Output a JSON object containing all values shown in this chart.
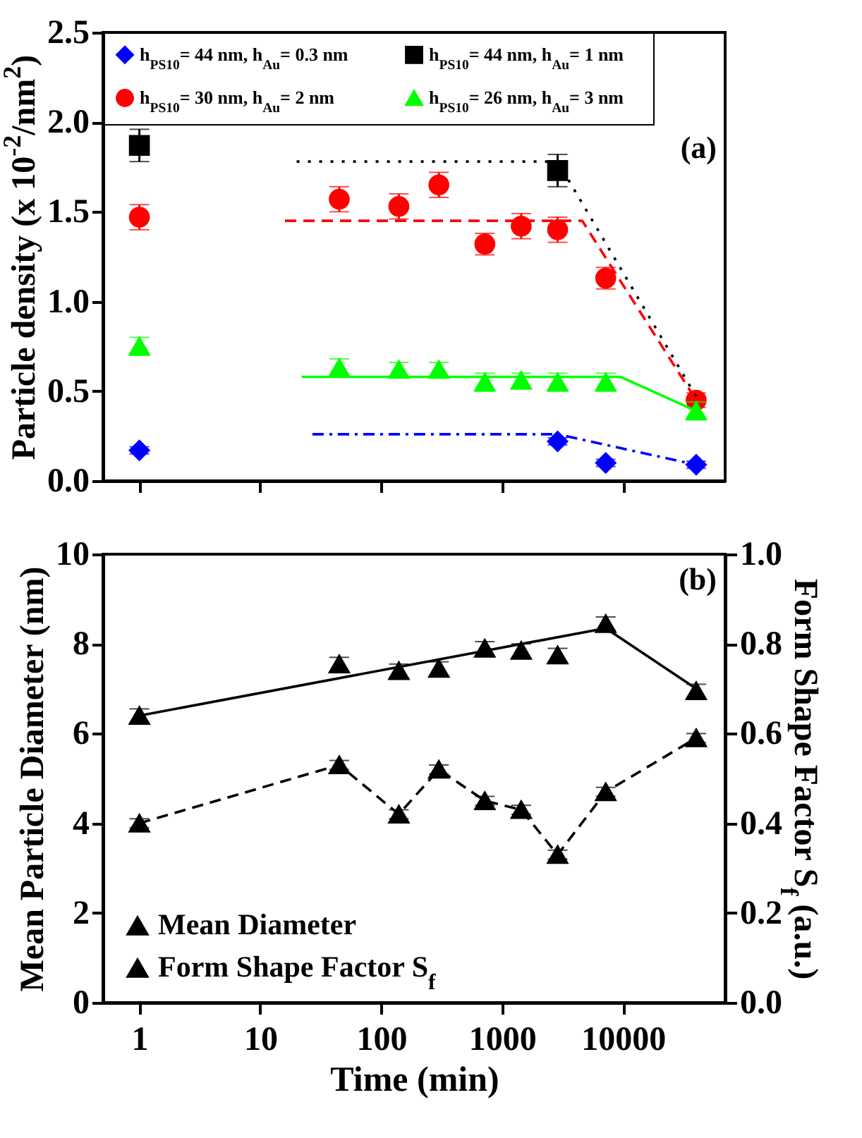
{
  "chart_data": [
    {
      "type": "scatter",
      "ylabel": "Particle density (x 10$^{-2}$/nm$^{2}$)",
      "log": "x",
      "xlim": [
        0.5,
        70000
      ],
      "xticks": [
        1,
        10,
        100,
        1000,
        10000
      ],
      "ylim": [
        0,
        2.5
      ],
      "yticks": [
        {
          "value": 0,
          "label": "0.0"
        },
        0.5,
        {
          "value": 1,
          "label": "1.0"
        },
        1.5,
        {
          "value": 2,
          "label": "2.0"
        },
        2.5
      ],
      "tick_labels": "y",
      "legend": "top",
      "grid": false,
      "annotations": [
        "(a)"
      ],
      "series": [
        {
          "name": "h$_{PS10}$= 44 nm, h$_{Au}$= 0.3 nm",
          "color": "#0000ff",
          "marker": "diamond",
          "x": [
            1,
            2880,
            7200,
            40320
          ],
          "values": [
            0.17,
            0.22,
            0.1,
            0.09
          ],
          "errors": [
            0.02,
            0.02,
            0.02,
            0.02
          ]
        },
        {
          "name": "h$_{PS10}$= 30 nm, h$_{Au}$= 2 nm",
          "color": "#ff0000",
          "marker": "circle",
          "x": [
            1,
            45,
            140,
            300,
            720,
            1440,
            2880,
            7200,
            40320
          ],
          "values": [
            1.47,
            1.57,
            1.53,
            1.65,
            1.32,
            1.42,
            1.4,
            1.13,
            0.45
          ],
          "errors": [
            0.07,
            0.07,
            0.07,
            0.07,
            0.06,
            0.07,
            0.07,
            0.06,
            0.04
          ]
        },
        {
          "name": "h$_{PS10}$= 44 nm, h$_{Au}$= 1 nm",
          "color": "#000000",
          "marker": "square",
          "x": [
            1,
            2880
          ],
          "values": [
            1.87,
            1.73
          ],
          "errors": [
            0.09,
            0.09
          ]
        },
        {
          "name": "h$_{PS10}$= 26 nm, h$_{Au}$= 3 nm",
          "color": "#00ff00",
          "marker": "triangle",
          "x": [
            1,
            45,
            140,
            300,
            720,
            1440,
            2880,
            7200,
            40320
          ],
          "values": [
            0.75,
            0.63,
            0.62,
            0.62,
            0.55,
            0.56,
            0.55,
            0.55,
            0.39
          ],
          "errors": [
            0.05,
            0.05,
            0.04,
            0.04,
            0.05,
            0.04,
            0.05,
            0.05,
            0.05
          ]
        },
        {
          "type": "line",
          "color": "#0000ff",
          "line_style": "dashdot",
          "marker": "none",
          "x": [
            27,
            2880,
            40320
          ],
          "values": [
            0.26,
            0.26,
            0.09
          ]
        },
        {
          "type": "line",
          "color": "#000000",
          "line_style": "dotted",
          "marker": "none",
          "x": [
            20,
            2880,
            40320
          ],
          "values": [
            1.78,
            1.78,
            0.47
          ]
        },
        {
          "type": "line",
          "color": "#ff0000",
          "line_style": "dashed",
          "marker": "none",
          "x": [
            16,
            4600,
            40320
          ],
          "values": [
            1.45,
            1.45,
            0.45
          ]
        },
        {
          "type": "line",
          "color": "#00ff00",
          "line_style": "solid",
          "marker": "none",
          "x": [
            22,
            9500,
            40320
          ],
          "values": [
            0.58,
            0.58,
            0.39
          ]
        }
      ]
    },
    {
      "type": "scatter",
      "xlabel": "Time (min)",
      "ylabel": "Mean Particle Diameter (nm)",
      "y2label": "Form Shape Factor S$_{f}$ (a.u.)",
      "log": "x",
      "xlim": [
        0.5,
        70000
      ],
      "xticks": [
        1,
        10,
        100,
        1000,
        10000
      ],
      "ylim": [
        0,
        10
      ],
      "yticks": [
        0,
        2,
        4,
        6,
        8,
        10
      ],
      "y2lim": [
        0,
        1.0
      ],
      "y2ticks": [
        {
          "value": 0,
          "label": "0.0"
        },
        0.2,
        0.4,
        0.6,
        0.8,
        {
          "value": 1,
          "label": "1.0"
        }
      ],
      "legend": "bottom left",
      "grid": false,
      "annotations": [
        "(b)"
      ],
      "series": [
        {
          "name": "Mean Diameter",
          "color": "#000000",
          "marker": "triangle",
          "x": [
            1,
            45,
            140,
            300,
            720,
            1440,
            2880,
            7200,
            40320
          ],
          "values": [
            6.4,
            7.55,
            7.4,
            7.45,
            7.9,
            7.85,
            7.75,
            8.45,
            6.95
          ],
          "errors": [
            0.15,
            0.15,
            0.15,
            0.15,
            0.15,
            0.15,
            0.15,
            0.15,
            0.15
          ]
        },
        {
          "type": "line",
          "color": "#000000",
          "line_style": "solid",
          "marker": "none",
          "x": [
            1,
            7200,
            40320
          ],
          "values": [
            6.4,
            8.35,
            7.0
          ]
        },
        {
          "name": "Form Shape Factor S$_{f}$",
          "type": "line",
          "axis": "y2",
          "color": "#000000",
          "marker": "triangle",
          "line_style": "dashed",
          "x": [
            1,
            45,
            140,
            300,
            720,
            1440,
            2880,
            7200,
            40320
          ],
          "values": [
            0.4,
            0.53,
            0.42,
            0.52,
            0.45,
            0.43,
            0.33,
            0.47,
            0.59
          ],
          "errors": [
            0.01,
            0.01,
            0.01,
            0.01,
            0.01,
            0.01,
            0.01,
            0.01,
            0.01
          ]
        }
      ]
    }
  ]
}
